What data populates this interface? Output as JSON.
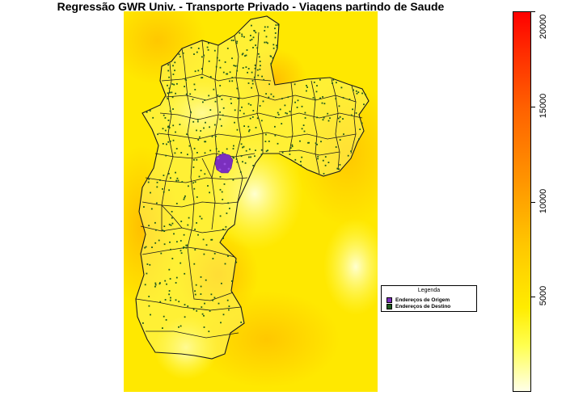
{
  "title": "Regressão GWR Univ. - Transporte Privado - Viagens partindo de Saude",
  "legend": {
    "title": "Legenda",
    "items": [
      {
        "label": "Endereços de Origem",
        "color": "#7b2fbe"
      },
      {
        "label": "Endereços de Destino",
        "color": "#1e5a1e"
      }
    ]
  },
  "colorbar": {
    "min": 0,
    "max": 20000,
    "ticks": [
      {
        "value": 5000,
        "label": "5000"
      },
      {
        "value": 10000,
        "label": "10000"
      },
      {
        "value": 15000,
        "label": "15000"
      },
      {
        "value": 20000,
        "label": "20000"
      }
    ]
  },
  "colors": {
    "low": "#ffffe8",
    "mid": "#ffc800",
    "high": "#ff0000",
    "boundary": "#1a1a1a",
    "origin": "#7b2fbe",
    "destination": "#1e5a1e"
  }
}
